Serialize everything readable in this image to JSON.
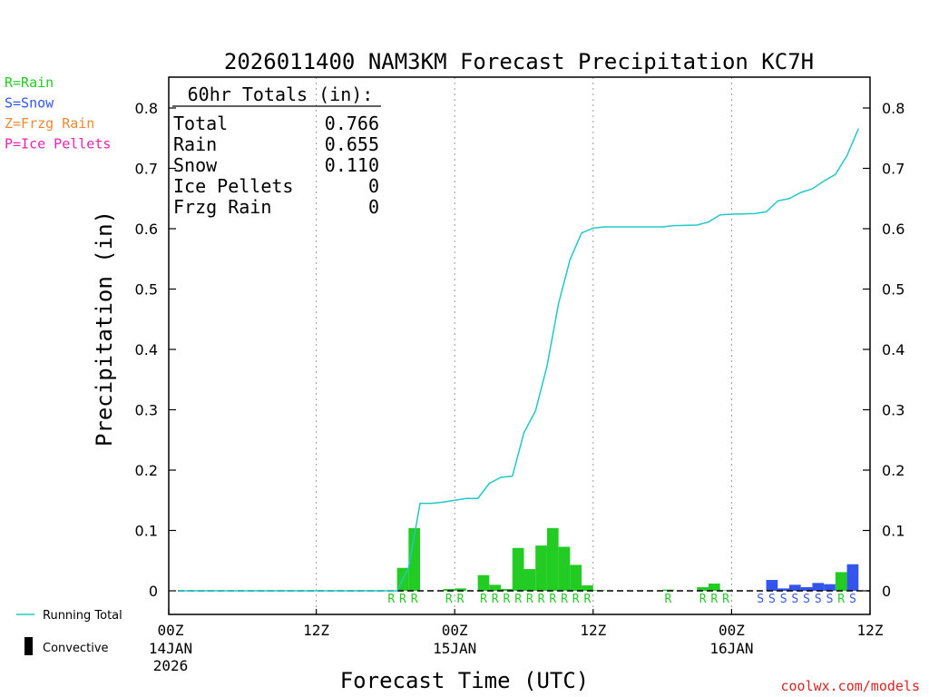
{
  "chart_data": {
    "type": "bar",
    "title": "2026011400 NAM3KM Forecast Precipitation KC7H",
    "xlabel": "Forecast Time (UTC)",
    "ylabel": "Precipitation (in)",
    "ylim": [
      0,
      0.85
    ],
    "xlim_hours": [
      0,
      60
    ],
    "yticks": [
      0,
      0.1,
      0.2,
      0.3,
      0.4,
      0.5,
      0.6,
      0.7,
      0.8
    ],
    "ytick_labels": [
      "0",
      "0.1",
      "0.2",
      "0.3",
      "0.4",
      "0.5",
      "0.6",
      "0.7",
      "0.8"
    ],
    "xticks": [
      {
        "hour": 0,
        "label": "00Z",
        "sub": [
          "14JAN",
          "2026"
        ]
      },
      {
        "hour": 12,
        "label": "12Z",
        "sub": []
      },
      {
        "hour": 24,
        "label": "00Z",
        "sub": [
          "15JAN"
        ]
      },
      {
        "hour": 36,
        "label": "12Z",
        "sub": []
      },
      {
        "hour": 48,
        "label": "00Z",
        "sub": [
          "16JAN"
        ]
      },
      {
        "hour": 60,
        "label": "12Z",
        "sub": []
      }
    ],
    "legend_types": [
      {
        "label": "R=Rain",
        "color": "#22cc22"
      },
      {
        "label": "S=Snow",
        "color": "#3355ee"
      },
      {
        "label": "Z=Frzg Rain",
        "color": "#ee8833"
      },
      {
        "label": "P=Ice Pellets",
        "color": "#ee22aa"
      }
    ],
    "legend_series": [
      {
        "label": "Running Total",
        "color": "#22c8c8"
      },
      {
        "label": "Convective",
        "color": "#000000"
      }
    ],
    "totals": {
      "header": "60hr Totals (in):",
      "rows": [
        {
          "label": "Total",
          "value": "0.766"
        },
        {
          "label": "Rain",
          "value": "0.655"
        },
        {
          "label": "Snow",
          "value": "0.110"
        },
        {
          "label": "Ice Pellets",
          "value": "0"
        },
        {
          "label": "Frzg Rain",
          "value": "0"
        }
      ]
    },
    "hourly_precip": [
      {
        "hour": 20,
        "value": 0.038,
        "type": "R"
      },
      {
        "hour": 21,
        "value": 0.104,
        "type": "R"
      },
      {
        "hour": 24,
        "value": 0.003,
        "type": "R"
      },
      {
        "hour": 25,
        "value": 0.004,
        "type": "R"
      },
      {
        "hour": 27,
        "value": 0.026,
        "type": "R"
      },
      {
        "hour": 28,
        "value": 0.01,
        "type": "R"
      },
      {
        "hour": 29,
        "value": 0.003,
        "type": "R"
      },
      {
        "hour": 30,
        "value": 0.071,
        "type": "R"
      },
      {
        "hour": 31,
        "value": 0.036,
        "type": "R"
      },
      {
        "hour": 32,
        "value": 0.075,
        "type": "R"
      },
      {
        "hour": 33,
        "value": 0.104,
        "type": "R"
      },
      {
        "hour": 34,
        "value": 0.073,
        "type": "R"
      },
      {
        "hour": 35,
        "value": 0.043,
        "type": "R"
      },
      {
        "hour": 36,
        "value": 0.009,
        "type": "R"
      },
      {
        "hour": 37,
        "value": 0.001,
        "type": "R"
      },
      {
        "hour": 43,
        "value": 0.002,
        "type": "R"
      },
      {
        "hour": 46,
        "value": 0.006,
        "type": "R"
      },
      {
        "hour": 47,
        "value": 0.012,
        "type": "R"
      },
      {
        "hour": 48,
        "value": 0.001,
        "type": "R"
      },
      {
        "hour": 52,
        "value": 0.018,
        "type": "S"
      },
      {
        "hour": 53,
        "value": 0.004,
        "type": "S"
      },
      {
        "hour": 54,
        "value": 0.01,
        "type": "S"
      },
      {
        "hour": 55,
        "value": 0.006,
        "type": "S"
      },
      {
        "hour": 56,
        "value": 0.013,
        "type": "S"
      },
      {
        "hour": 57,
        "value": 0.011,
        "type": "S"
      },
      {
        "hour": 58,
        "value": 0.031,
        "type": "R"
      },
      {
        "hour": 59,
        "value": 0.044,
        "type": "S"
      }
    ],
    "type_markers": [
      {
        "hour": 19,
        "type": "R"
      },
      {
        "hour": 20,
        "type": "R"
      },
      {
        "hour": 21,
        "type": "R"
      },
      {
        "hour": 24,
        "type": "R"
      },
      {
        "hour": 25,
        "type": "R"
      },
      {
        "hour": 27,
        "type": "R"
      },
      {
        "hour": 28,
        "type": "R"
      },
      {
        "hour": 29,
        "type": "R"
      },
      {
        "hour": 30,
        "type": "R"
      },
      {
        "hour": 31,
        "type": "R"
      },
      {
        "hour": 32,
        "type": "R"
      },
      {
        "hour": 33,
        "type": "R"
      },
      {
        "hour": 34,
        "type": "R"
      },
      {
        "hour": 35,
        "type": "R"
      },
      {
        "hour": 36,
        "type": "R"
      },
      {
        "hour": 43,
        "type": "R"
      },
      {
        "hour": 46,
        "type": "R"
      },
      {
        "hour": 47,
        "type": "R"
      },
      {
        "hour": 48,
        "type": "R"
      },
      {
        "hour": 51,
        "type": "S"
      },
      {
        "hour": 52,
        "type": "S"
      },
      {
        "hour": 53,
        "type": "S"
      },
      {
        "hour": 54,
        "type": "S"
      },
      {
        "hour": 55,
        "type": "S"
      },
      {
        "hour": 56,
        "type": "S"
      },
      {
        "hour": 57,
        "type": "S"
      },
      {
        "hour": 58,
        "type": "R"
      },
      {
        "hour": 59,
        "type": "S"
      }
    ],
    "running_total": [
      {
        "hour": 0,
        "value": 0
      },
      {
        "hour": 19,
        "value": 0
      },
      {
        "hour": 20,
        "value": 0.038
      },
      {
        "hour": 21,
        "value": 0.145
      },
      {
        "hour": 22,
        "value": 0.145
      },
      {
        "hour": 23,
        "value": 0.147
      },
      {
        "hour": 24,
        "value": 0.15
      },
      {
        "hour": 25,
        "value": 0.153
      },
      {
        "hour": 26,
        "value": 0.153
      },
      {
        "hour": 27,
        "value": 0.178
      },
      {
        "hour": 28,
        "value": 0.188
      },
      {
        "hour": 29,
        "value": 0.19
      },
      {
        "hour": 30,
        "value": 0.262
      },
      {
        "hour": 31,
        "value": 0.298
      },
      {
        "hour": 32,
        "value": 0.372
      },
      {
        "hour": 33,
        "value": 0.476
      },
      {
        "hour": 34,
        "value": 0.549
      },
      {
        "hour": 35,
        "value": 0.593
      },
      {
        "hour": 36,
        "value": 0.601
      },
      {
        "hour": 37,
        "value": 0.603
      },
      {
        "hour": 42,
        "value": 0.603
      },
      {
        "hour": 43,
        "value": 0.605
      },
      {
        "hour": 45,
        "value": 0.606
      },
      {
        "hour": 46,
        "value": 0.611
      },
      {
        "hour": 47,
        "value": 0.623
      },
      {
        "hour": 48,
        "value": 0.624
      },
      {
        "hour": 50,
        "value": 0.625
      },
      {
        "hour": 51,
        "value": 0.628
      },
      {
        "hour": 52,
        "value": 0.646
      },
      {
        "hour": 53,
        "value": 0.65
      },
      {
        "hour": 54,
        "value": 0.66
      },
      {
        "hour": 55,
        "value": 0.666
      },
      {
        "hour": 56,
        "value": 0.679
      },
      {
        "hour": 57,
        "value": 0.69
      },
      {
        "hour": 58,
        "value": 0.721
      },
      {
        "hour": 59,
        "value": 0.766
      }
    ],
    "colors": {
      "rain": "#22cc22",
      "snow": "#3355ee",
      "frzg_rain": "#ee8833",
      "ice_pellets": "#ee22aa",
      "running_total": "#22c8c8"
    },
    "credit": "coolwx.com/models"
  }
}
